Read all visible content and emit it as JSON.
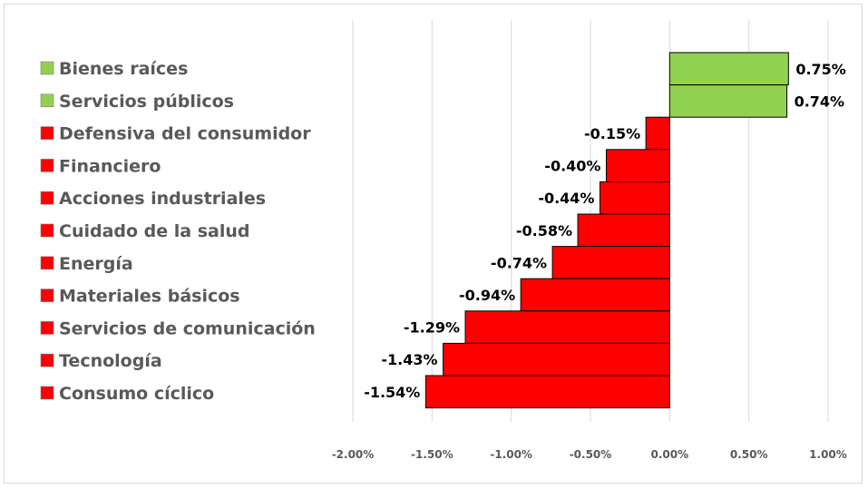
{
  "chart_data": {
    "type": "bar",
    "orientation": "horizontal",
    "categories": [
      "Bienes raíces",
      "Servicios públicos",
      "Defensiva del consumidor",
      "Financiero",
      "Acciones industriales",
      "Cuidado de la salud",
      "Energía",
      "Materiales básicos",
      "Servicios de comunicación",
      "Tecnología",
      "Consumo cíclico"
    ],
    "values": [
      0.75,
      0.74,
      -0.15,
      -0.4,
      -0.44,
      -0.58,
      -0.74,
      -0.94,
      -1.29,
      -1.43,
      -1.54
    ],
    "value_labels": [
      "0.75%",
      "0.74%",
      "-0.15%",
      "-0.40%",
      "-0.44%",
      "-0.58%",
      "-0.74%",
      "-0.94%",
      "-1.29%",
      "-1.43%",
      "-1.54%"
    ],
    "xlim": [
      -2.0,
      1.0
    ],
    "xticks": [
      -2.0,
      -1.5,
      -1.0,
      -0.5,
      0.0,
      0.5,
      1.0
    ],
    "xtick_labels": [
      "-2.00%",
      "-1.50%",
      "-1.00%",
      "-0.50%",
      "0.00%",
      "0.50%",
      "1.00%"
    ],
    "grid": "vertical",
    "legend": "left",
    "colors": {
      "positive": "#92d050",
      "negative": "#ff0000",
      "bar_border": "#000000",
      "grid": "#d9d9d9"
    },
    "title": "",
    "xlabel": "",
    "ylabel": ""
  }
}
